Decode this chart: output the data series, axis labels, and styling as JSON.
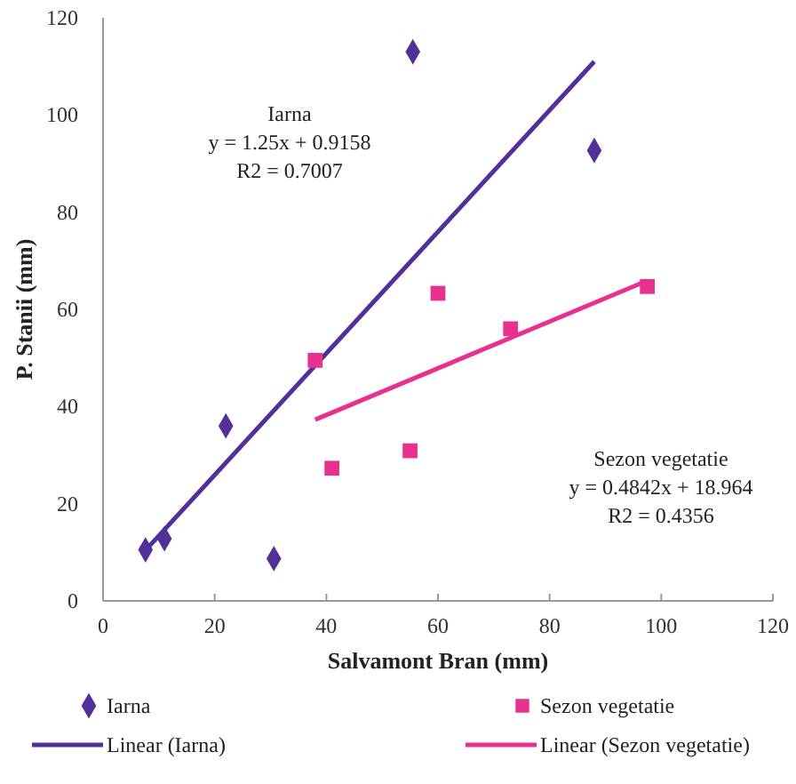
{
  "chart_data": {
    "type": "scatter",
    "xlabel": "Salvamont Bran (mm)",
    "ylabel": "P. Stanii (mm)",
    "xlim": [
      0,
      120
    ],
    "xticks": [
      0,
      20,
      40,
      60,
      80,
      100,
      120
    ],
    "ylim": [
      0,
      120
    ],
    "yticks": [
      0,
      20,
      40,
      60,
      80,
      100,
      120
    ],
    "legend": "bottom",
    "series": [
      {
        "name": "Iarna",
        "marker": "diamond",
        "color": "#51309a",
        "x": [
          7.6,
          11,
          22,
          30.6,
          55.5,
          88
        ],
        "values": [
          10.5,
          12.8,
          36,
          8.7,
          113,
          92.7
        ]
      },
      {
        "name": "Sezon vegetatie",
        "marker": "square",
        "color": "#e8308f",
        "x": [
          38,
          41,
          55,
          60,
          73,
          97.5
        ],
        "values": [
          49.5,
          27.3,
          30.9,
          63.3,
          56,
          64.7
        ]
      },
      {
        "name": "Linear (Iarna)",
        "type": "line",
        "color": "#51309a",
        "x": [
          7.6,
          88
        ],
        "values": [
          10.4,
          111
        ]
      },
      {
        "name": "Linear (Sezon vegetatie)",
        "type": "line",
        "color": "#e8308f",
        "x": [
          38,
          97.5
        ],
        "values": [
          37.3,
          65.9
        ]
      }
    ],
    "annotations": [
      "Iarna\ny = 1.25x + 0.9158\nR2 = 0.7007",
      "Sezon vegetatie\ny = 0.4842x + 18.964\nR2 = 0.4356"
    ]
  }
}
